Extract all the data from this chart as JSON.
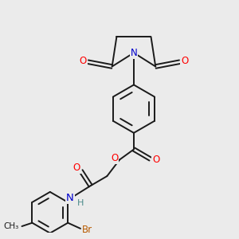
{
  "bg_color": "#ebebeb",
  "bond_color": "#1a1a1a",
  "bond_width": 1.4,
  "atom_colors": {
    "O": "#ff0000",
    "N": "#0000cc",
    "Br": "#b85a00",
    "C": "#1a1a1a",
    "H": "#4a8a8a"
  },
  "font_size": 8.5,
  "fig_size": [
    3.0,
    3.0
  ],
  "dpi": 100,
  "xlim": [
    0,
    10
  ],
  "ylim": [
    0,
    10
  ]
}
